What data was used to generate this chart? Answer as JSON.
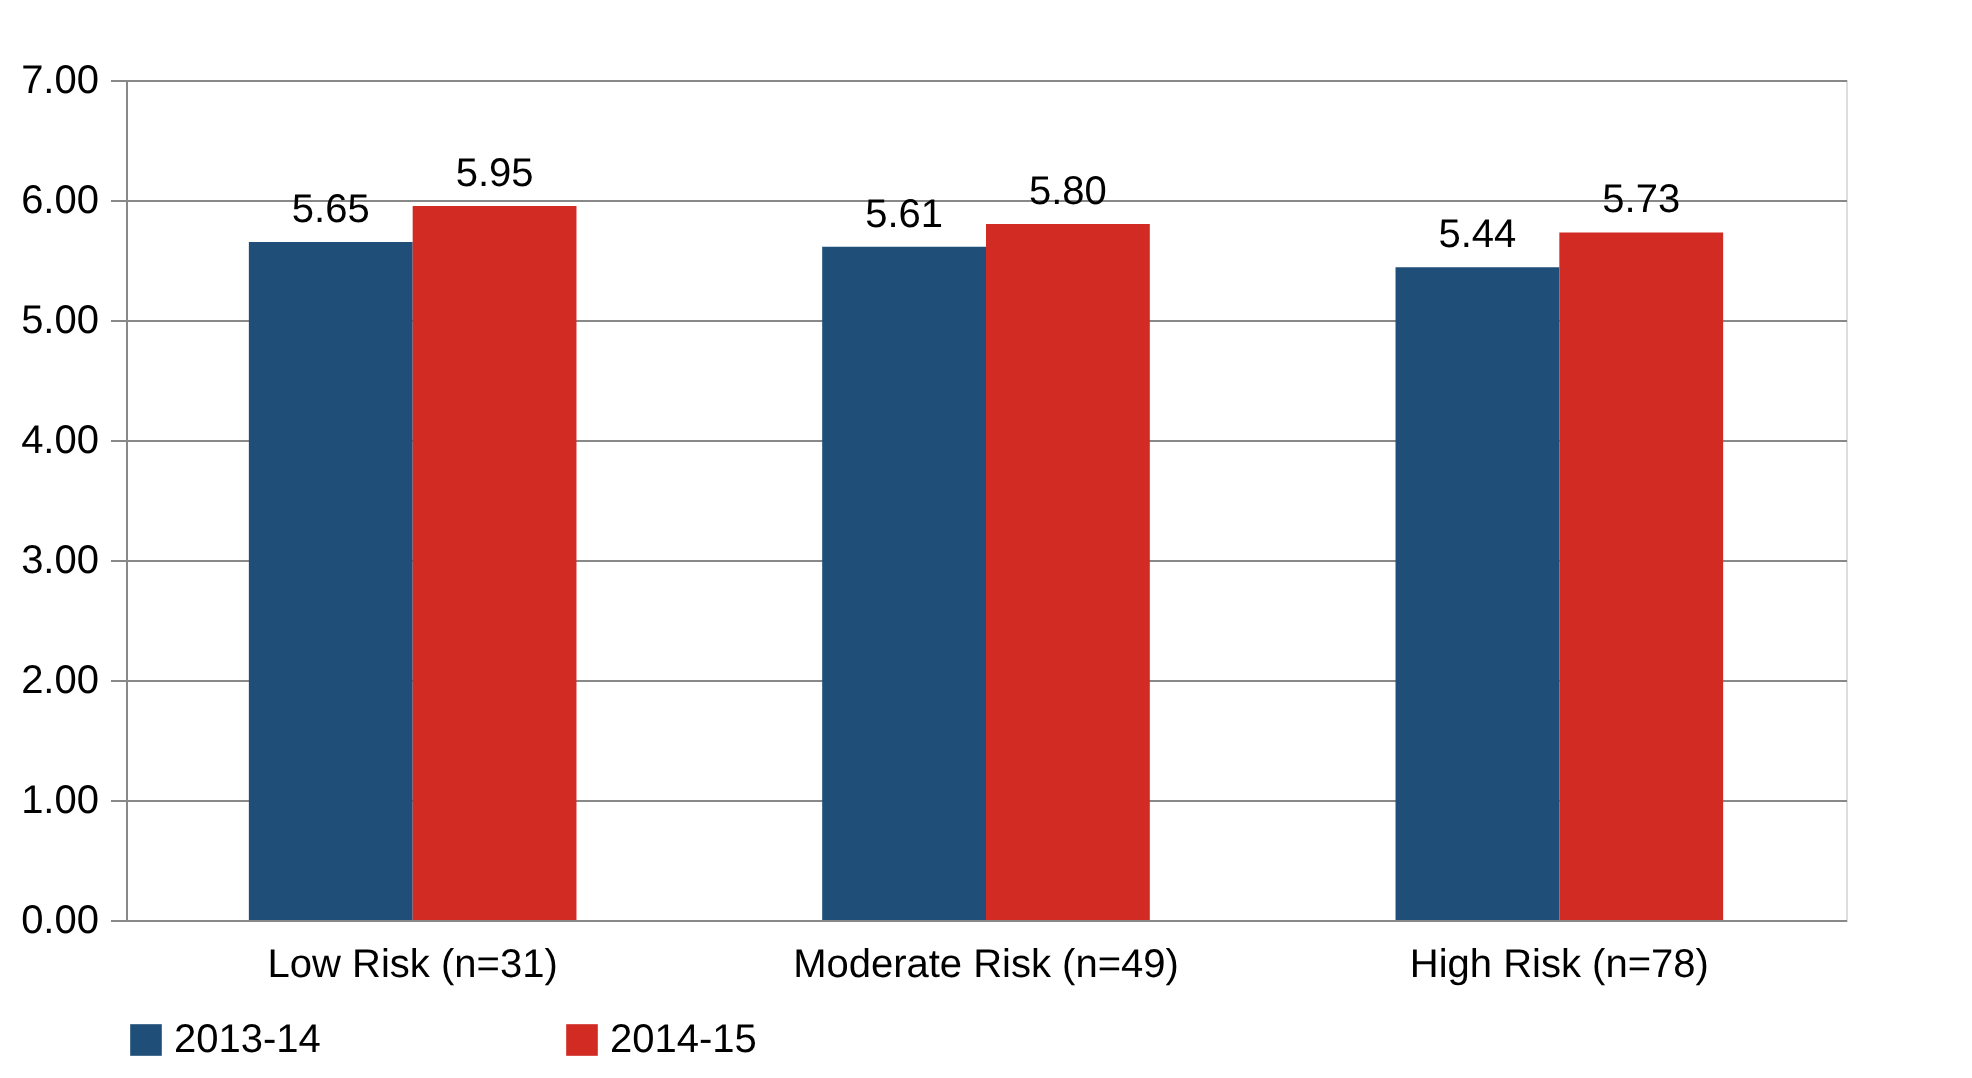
{
  "chart_data": {
    "type": "bar",
    "categories": [
      "Low Risk (n=31)",
      "Moderate Risk (n=49)",
      "High Risk (n=78)"
    ],
    "series": [
      {
        "name": "2013-14",
        "color": "#1f4e79",
        "values": [
          5.65,
          5.61,
          5.44
        ],
        "value_labels": [
          "5.65",
          "5.61",
          "5.44"
        ]
      },
      {
        "name": "2014-15",
        "color": "#d12b24",
        "values": [
          5.95,
          5.8,
          5.73
        ],
        "value_labels": [
          "5.95",
          "5.80",
          "5.73"
        ]
      }
    ],
    "ylim": [
      0,
      7
    ],
    "yticks": [
      {
        "value": 0,
        "label": "0.00"
      },
      {
        "value": 1,
        "label": "1.00"
      },
      {
        "value": 2,
        "label": "2.00"
      },
      {
        "value": 3,
        "label": "3.00"
      },
      {
        "value": 4,
        "label": "4.00"
      },
      {
        "value": 5,
        "label": "5.00"
      },
      {
        "value": 6,
        "label": "6.00"
      },
      {
        "value": 7,
        "label": "7.00"
      }
    ],
    "grid": "y",
    "legend": "bottom"
  }
}
